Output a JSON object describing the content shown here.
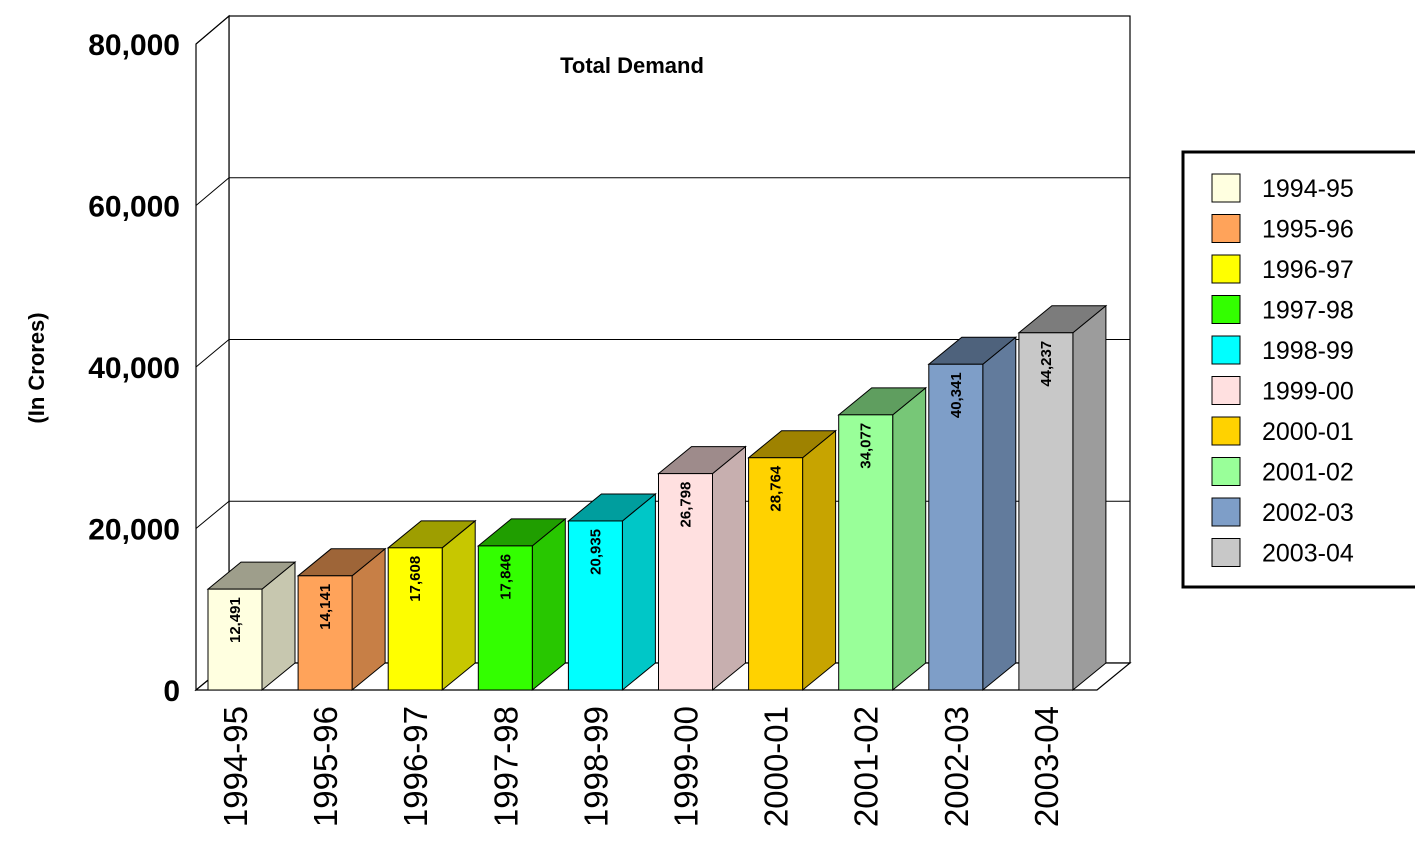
{
  "chart_data": {
    "type": "bar",
    "title": "Total Demand",
    "xlabel": "",
    "ylabel": "(In Crores)",
    "ylim": [
      0,
      80000
    ],
    "yticks": [
      "0",
      "20,000",
      "40,000",
      "60,000",
      "80,000"
    ],
    "grid": true,
    "legend_position": "right",
    "categories": [
      "1994-95",
      "1995-96",
      "1996-97",
      "1997-98",
      "1998-99",
      "1999-00",
      "2000-01",
      "2001-02",
      "2002-03",
      "2003-04"
    ],
    "values": [
      12491,
      14141,
      17608,
      17846,
      20935,
      26798,
      28764,
      34077,
      40341,
      44237
    ],
    "data_labels": [
      "12,491",
      "14,141",
      "17,608",
      "17,846",
      "20,935",
      "26,798",
      "28,764",
      "34,077",
      "40,341",
      "44,237"
    ],
    "colors": [
      "#FFFFE0",
      "#FFA35A",
      "#FFFF00",
      "#33FF00",
      "#00FFFF",
      "#FFE0E0",
      "#FFD200",
      "#99FF99",
      "#7E9EC8",
      "#C8C8C8"
    ]
  }
}
